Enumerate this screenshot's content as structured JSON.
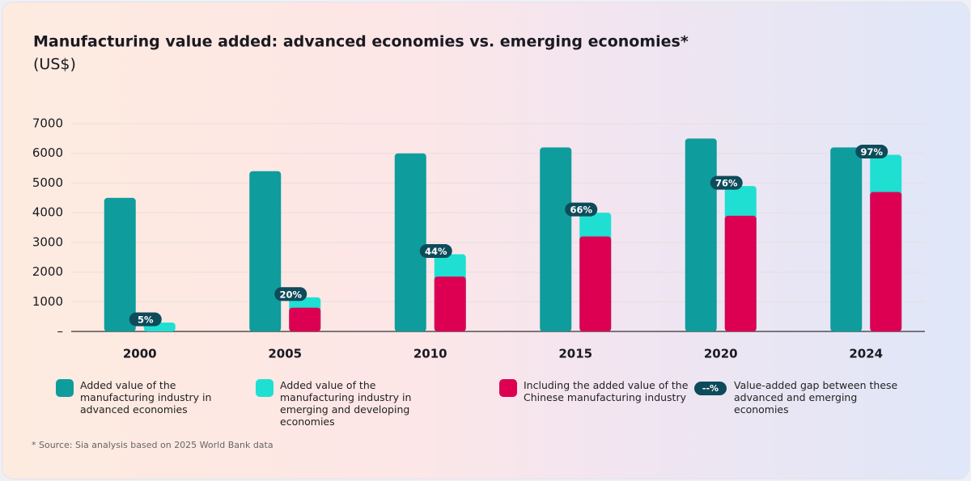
{
  "chart_data": {
    "type": "bar",
    "title": "Manufacturing value added: advanced economies vs. emerging economies*",
    "subtitle": "(US$)",
    "categories": [
      "2000",
      "2005",
      "2010",
      "2015",
      "2020",
      "2024"
    ],
    "series": [
      {
        "name": "Added value of the manufacturing industry in advanced economies",
        "color": "#0f9c9c",
        "values": [
          4500,
          5400,
          6000,
          6200,
          6500,
          6200
        ]
      },
      {
        "name": "Added value of the manufacturing industry in emerging and developing economies",
        "color": "#1fdfd2",
        "values": [
          300,
          1150,
          2600,
          4000,
          4900,
          5950
        ]
      },
      {
        "name": "Including the added value of the Chinese manufacturing industry",
        "color": "#dd0052",
        "values": [
          null,
          800,
          1850,
          3200,
          3900,
          4700
        ]
      },
      {
        "name": "Value-added gap between these advanced and emerging economies",
        "color": "#0e4b5a",
        "marker_label": "--%",
        "values": [
          5,
          20,
          44,
          66,
          76,
          97
        ],
        "value_labels": [
          "5%",
          "20%",
          "44%",
          "66%",
          "76%",
          "97%"
        ]
      }
    ],
    "ylim": [
      0,
      7000
    ],
    "yticks": [
      {
        "value": 0,
        "label": "–"
      },
      1000,
      2000,
      3000,
      4000,
      5000,
      6000,
      7000
    ],
    "grid": true,
    "footnote": "* Source: Sia analysis based on 2025 World Bank data"
  }
}
